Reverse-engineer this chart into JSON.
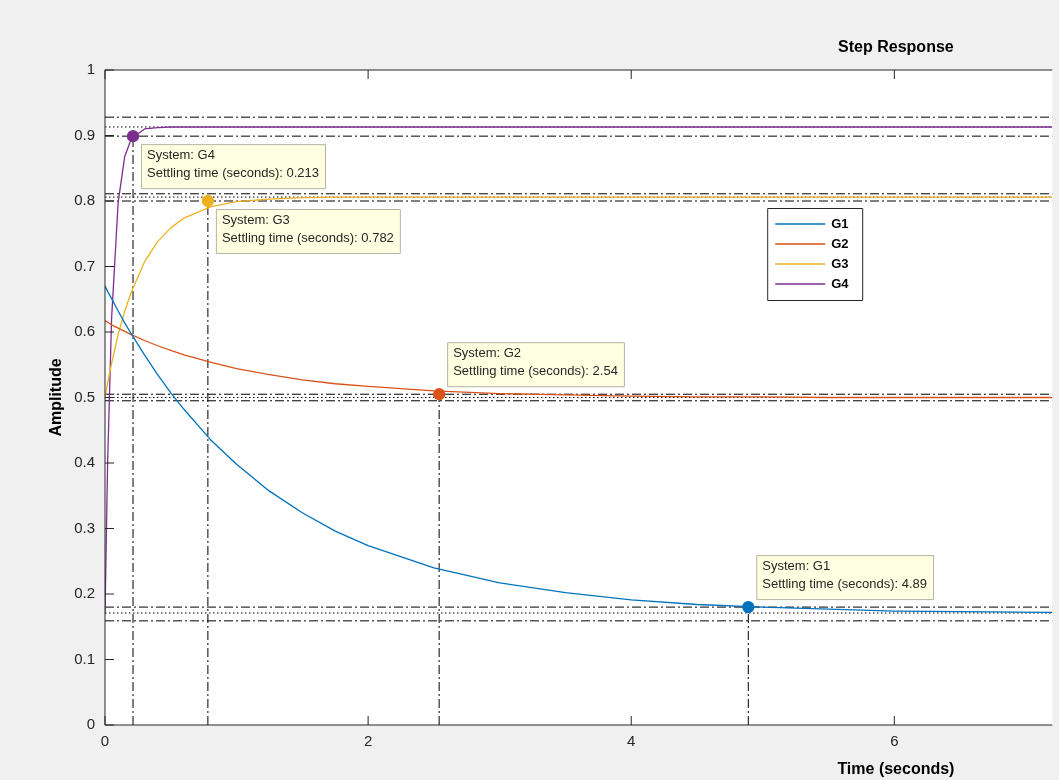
{
  "chart_data": {
    "type": "line",
    "title": "Step Response",
    "xlabel": "Time (seconds)",
    "ylabel": "Amplitude",
    "x": [
      0,
      0.02,
      0.05,
      0.1,
      0.15,
      0.2,
      0.3,
      0.4,
      0.5,
      0.6,
      0.8,
      1,
      1.25,
      1.5,
      1.75,
      2,
      2.5,
      3,
      3.5,
      4,
      4.5,
      5,
      5.5,
      6,
      6.5,
      7.2
    ],
    "series": [
      {
        "name": "G1",
        "color": "#0072bd",
        "values": [
          0.67,
          0.662,
          0.651,
          0.632,
          0.614,
          0.597,
          0.565,
          0.535,
          0.507,
          0.482,
          0.436,
          0.398,
          0.357,
          0.324,
          0.296,
          0.274,
          0.24,
          0.217,
          0.202,
          0.191,
          0.184,
          0.18,
          0.177,
          0.174,
          0.173,
          0.172
        ]
      },
      {
        "name": "G2",
        "color": "#d95319",
        "values": [
          0.617,
          0.615,
          0.611,
          0.606,
          0.601,
          0.596,
          0.587,
          0.579,
          0.572,
          0.565,
          0.554,
          0.544,
          0.535,
          0.527,
          0.521,
          0.517,
          0.51,
          0.506,
          0.504,
          0.502,
          0.501,
          0.501,
          0.5,
          0.5,
          0.5,
          0.5
        ]
      },
      {
        "name": "G3",
        "color": "#edb120",
        "values": [
          0.5,
          0.522,
          0.552,
          0.596,
          0.632,
          0.661,
          0.707,
          0.738,
          0.759,
          0.774,
          0.791,
          0.799,
          0.803,
          0.805,
          0.806,
          0.806,
          0.806,
          0.806,
          0.806,
          0.806,
          0.806,
          0.806,
          0.806,
          0.806,
          0.806,
          0.806
        ]
      },
      {
        "name": "G4",
        "color": "#7e2f8e",
        "values": [
          0.17,
          0.401,
          0.62,
          0.798,
          0.868,
          0.895,
          0.91,
          0.912,
          0.913,
          0.913,
          0.913,
          0.913,
          0.913,
          0.913,
          0.913,
          0.913,
          0.913,
          0.913,
          0.913,
          0.913,
          0.913,
          0.913,
          0.913,
          0.913,
          0.913,
          0.913
        ]
      },
      {
        "type": "scatter",
        "marker": "circle",
        "x": [
          0.213,
          0.782,
          2.54,
          4.89
        ],
        "values": [
          0.899,
          0.8,
          0.505,
          0.18
        ],
        "colors": [
          "#7e2f8e",
          "#edb120",
          "#d95319",
          "#0072bd"
        ]
      }
    ],
    "xlim": [
      0,
      7.2
    ],
    "xticks": [
      0,
      2,
      4,
      6
    ],
    "ylim": [
      0,
      1
    ],
    "yticks": [
      0,
      0.1,
      0.2,
      0.3,
      0.4,
      0.5,
      0.6,
      0.7,
      0.8,
      0.9,
      1
    ],
    "legend": "top right",
    "ref_lines": [
      {
        "axis": "y",
        "value": 0.928,
        "color": "#000000",
        "line_style": "dashed"
      },
      {
        "axis": "y",
        "value": 0.913,
        "color": "#000000",
        "line_style": "dotted"
      },
      {
        "axis": "y",
        "value": 0.899,
        "color": "#000000",
        "line_style": "dashed"
      },
      {
        "axis": "y",
        "value": 0.811,
        "color": "#000000",
        "line_style": "dashed"
      },
      {
        "axis": "y",
        "value": 0.806,
        "color": "#000000",
        "line_style": "dotted"
      },
      {
        "axis": "y",
        "value": 0.8,
        "color": "#000000",
        "line_style": "dashed"
      },
      {
        "axis": "y",
        "value": 0.505,
        "color": "#000000",
        "line_style": "dashed"
      },
      {
        "axis": "y",
        "value": 0.5,
        "color": "#000000",
        "line_style": "dotted"
      },
      {
        "axis": "y",
        "value": 0.495,
        "color": "#000000",
        "line_style": "dashed"
      },
      {
        "axis": "y",
        "value": 0.18,
        "color": "#000000",
        "line_style": "dashed"
      },
      {
        "axis": "y",
        "value": 0.171,
        "color": "#000000",
        "line_style": "dotted"
      },
      {
        "axis": "y",
        "value": 0.159,
        "color": "#000000",
        "line_style": "dashed"
      },
      {
        "axis": "x",
        "value": 0.213,
        "color": "#000000",
        "line_style": "dashed"
      },
      {
        "axis": "x",
        "value": 0.782,
        "color": "#000000",
        "line_style": "dashed"
      },
      {
        "axis": "x",
        "value": 2.54,
        "color": "#000000",
        "line_style": "dashed"
      },
      {
        "axis": "x",
        "value": 4.89,
        "color": "#000000",
        "line_style": "dashed"
      }
    ],
    "annotations": [
      {
        "text": "System: G4\nSettling time (seconds): 0.213",
        "x": 0.213,
        "y": 0.899
      },
      {
        "text": "System: G3\nSettling time (seconds): 0.782",
        "x": 0.782,
        "y": 0.8
      },
      {
        "text": "System: G2\nSettling time (seconds): 2.54",
        "x": 2.54,
        "y": 0.505
      },
      {
        "text": "System: G1\nSettling time (seconds): 4.89",
        "x": 4.89,
        "y": 0.18
      }
    ]
  }
}
